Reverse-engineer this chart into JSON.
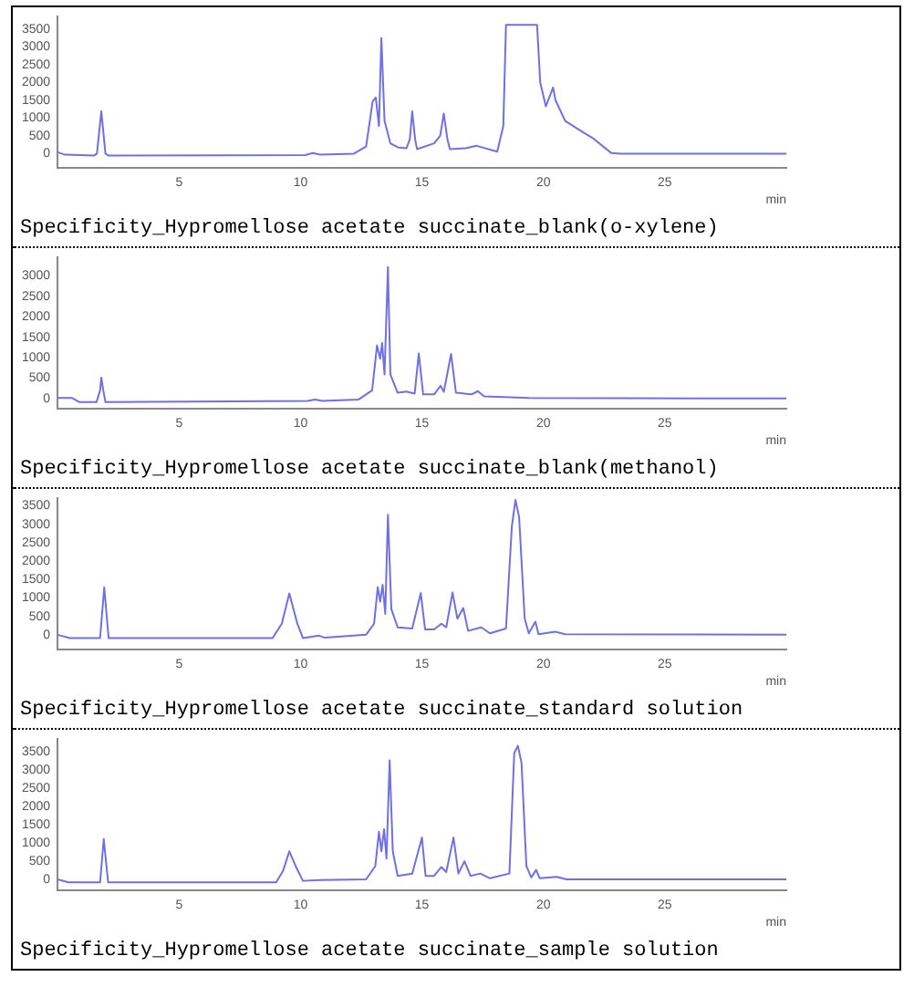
{
  "chart_data": [
    {
      "type": "line",
      "title": "Specificity_Hypromellose acetate succinate_blank(o-xylene)",
      "xlabel": "min",
      "xlim": [
        0,
        30
      ],
      "xticks": [
        5,
        10,
        15,
        20,
        25
      ],
      "ylim": [
        -400,
        3850
      ],
      "yticks": [
        0,
        500,
        1000,
        1500,
        2000,
        2500,
        3000,
        3500
      ],
      "grid": false,
      "legend": false,
      "marker": "none",
      "series": [
        {
          "color": "#6f6fe8",
          "x": [
            0,
            0.3,
            1.5,
            1.62,
            1.8,
            1.97,
            2.1,
            10.2,
            10.5,
            10.8,
            12.2,
            12.7,
            12.85,
            12.97,
            13.1,
            13.23,
            13.33,
            13.46,
            13.7,
            14.0,
            14.36,
            14.5,
            14.6,
            14.72,
            14.8,
            15.5,
            15.75,
            15.9,
            16.05,
            16.15,
            16.8,
            17.25,
            18.1,
            18.35,
            18.46,
            19.74,
            19.87,
            20.1,
            20.4,
            20.5,
            20.9,
            21.7,
            22.05,
            22.8,
            23.2,
            30
          ],
          "values": [
            40,
            -30,
            -55,
            0,
            1190,
            0,
            -55,
            -40,
            15,
            -30,
            0,
            200,
            900,
            1470,
            1580,
            780,
            3250,
            920,
            290,
            180,
            150,
            400,
            1190,
            400,
            125,
            290,
            500,
            1125,
            400,
            125,
            150,
            220,
            55,
            780,
            3625,
            3625,
            2000,
            1330,
            1860,
            1500,
            920,
            570,
            430,
            14,
            0,
            0
          ]
        }
      ]
    },
    {
      "type": "line",
      "title": "Specificity_Hypromellose acetate succinate_blank(methanol)",
      "xlabel": "min",
      "xlim": [
        0,
        30
      ],
      "xticks": [
        5,
        10,
        15,
        20,
        25
      ],
      "ylim": [
        -250,
        3450
      ],
      "yticks": [
        0,
        500,
        1000,
        1500,
        2000,
        2500,
        3000
      ],
      "grid": false,
      "legend": false,
      "marker": "none",
      "series": [
        {
          "color": "#6f6fe8",
          "x": [
            0,
            0.6,
            0.9,
            1.6,
            1.75,
            1.8,
            1.88,
            1.97,
            10.3,
            10.6,
            10.9,
            12.4,
            12.95,
            13.15,
            13.28,
            13.36,
            13.46,
            13.6,
            13.7,
            14.0,
            14.36,
            14.7,
            14.87,
            15.05,
            15.5,
            15.77,
            15.9,
            16.2,
            16.4,
            17.05,
            17.3,
            17.56,
            19.4,
            30
          ],
          "values": [
            10,
            10,
            -90,
            -90,
            200,
            510,
            200,
            -90,
            -60,
            -25,
            -60,
            -25,
            200,
            1300,
            975,
            1360,
            590,
            3220,
            590,
            140,
            170,
            120,
            1100,
            100,
            100,
            310,
            160,
            1090,
            140,
            100,
            180,
            50,
            10,
            0
          ]
        }
      ]
    },
    {
      "type": "line",
      "title": "Specificity_Hypromellose acetate succinate_standard solution",
      "xlabel": "min",
      "xlim": [
        0,
        30
      ],
      "xticks": [
        5,
        10,
        15,
        20,
        25
      ],
      "ylim": [
        -400,
        3700
      ],
      "yticks": [
        0,
        500,
        1000,
        1500,
        2000,
        2500,
        3000,
        3500
      ],
      "grid": false,
      "legend": false,
      "marker": "none",
      "series": [
        {
          "color": "#6f6fe8",
          "x": [
            0,
            0.5,
            1.75,
            1.92,
            2.1,
            8.85,
            9.23,
            9.54,
            9.87,
            10.1,
            10.77,
            11.0,
            12.7,
            13.03,
            13.18,
            13.28,
            13.38,
            13.49,
            13.6,
            13.74,
            14.0,
            14.6,
            14.95,
            15.13,
            15.5,
            15.8,
            16.0,
            16.26,
            16.46,
            16.7,
            16.9,
            17.44,
            17.8,
            18.46,
            18.7,
            18.85,
            19.0,
            19.23,
            19.4,
            19.67,
            19.8,
            20.5,
            20.9,
            30
          ],
          "values": [
            0,
            -90,
            -90,
            1290,
            -90,
            -90,
            300,
            1120,
            300,
            -90,
            -25,
            -80,
            0,
            300,
            1290,
            895,
            1355,
            565,
            3260,
            700,
            200,
            170,
            1130,
            145,
            145,
            300,
            200,
            1145,
            435,
            725,
            105,
            200,
            40,
            170,
            2930,
            3660,
            3200,
            435,
            40,
            355,
            15,
            80,
            15,
            0
          ]
        }
      ]
    },
    {
      "type": "line",
      "title": "Specificity_Hypromellose acetate succinate_sample solution",
      "xlabel": "min",
      "xlim": [
        0,
        30
      ],
      "xticks": [
        5,
        10,
        15,
        20,
        25
      ],
      "ylim": [
        -300,
        3850
      ],
      "yticks": [
        0,
        500,
        1000,
        1500,
        2000,
        2500,
        3000,
        3500
      ],
      "grid": false,
      "legend": false,
      "marker": "none",
      "series": [
        {
          "color": "#6f6fe8",
          "x": [
            0,
            0.45,
            1.75,
            1.9,
            2.08,
            9.0,
            9.28,
            9.54,
            9.8,
            10.1,
            10.8,
            12.7,
            13.08,
            13.23,
            13.33,
            13.44,
            13.54,
            13.67,
            13.8,
            14.0,
            14.6,
            15.0,
            15.15,
            15.5,
            15.8,
            16.0,
            16.3,
            16.5,
            16.75,
            17.0,
            17.4,
            17.8,
            18.6,
            18.8,
            18.95,
            19.1,
            19.3,
            19.5,
            19.7,
            19.85,
            20.55,
            20.95,
            30
          ],
          "values": [
            0,
            -80,
            -80,
            1110,
            -80,
            -80,
            230,
            770,
            365,
            -40,
            -15,
            0,
            365,
            1310,
            770,
            1380,
            570,
            3270,
            770,
            95,
            160,
            1150,
            95,
            95,
            340,
            200,
            1150,
            160,
            500,
            95,
            160,
            30,
            160,
            3470,
            3670,
            3200,
            365,
            55,
            260,
            30,
            70,
            0,
            0
          ]
        }
      ]
    }
  ]
}
